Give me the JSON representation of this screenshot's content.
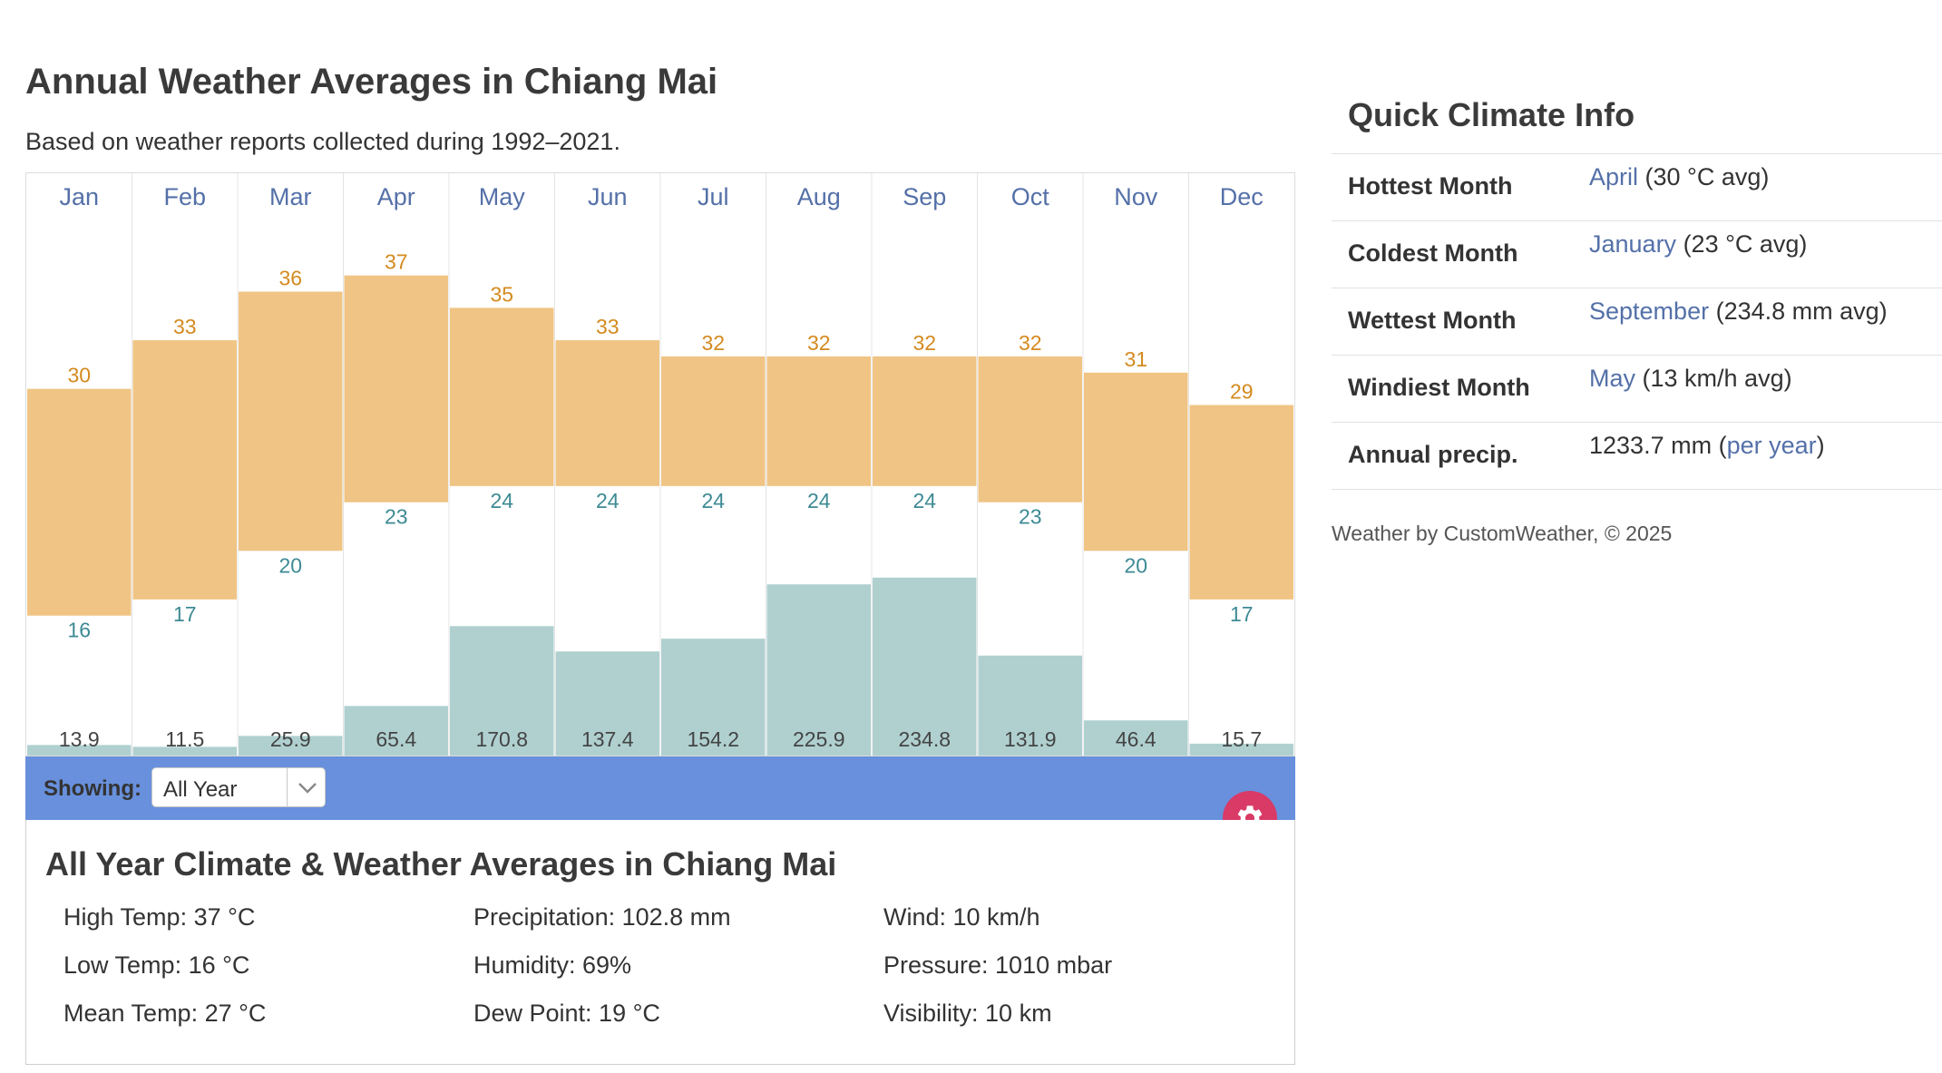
{
  "header": {
    "title": "Annual Weather Averages in Chiang Mai",
    "subtitle": "Based on weather reports collected during 1992–2021."
  },
  "chart_data": {
    "type": "bar",
    "categories": [
      "Jan",
      "Feb",
      "Mar",
      "Apr",
      "May",
      "Jun",
      "Jul",
      "Aug",
      "Sep",
      "Oct",
      "Nov",
      "Dec"
    ],
    "series": [
      {
        "name": "",
        "kind": "temperature_range",
        "high": [
          30,
          33,
          36,
          37,
          35,
          33,
          32,
          32,
          32,
          32,
          31,
          29
        ],
        "low": [
          16,
          17,
          20,
          23,
          24,
          24,
          24,
          24,
          24,
          23,
          20,
          17
        ]
      },
      {
        "name": "",
        "kind": "precipitation",
        "values": [
          13.9,
          11.5,
          25.9,
          65.4,
          170.8,
          137.4,
          154.2,
          225.9,
          234.8,
          131.9,
          46.4,
          15.7
        ]
      }
    ],
    "colors": {
      "temperature": "#f0c484",
      "precipitation": "#b0d0d0",
      "high_label": "#d48a1f",
      "low_label": "#3d8a94",
      "month_label": "#5470a8"
    },
    "grid": "vertical",
    "legend": "none"
  },
  "controls": {
    "showing_label": "Showing:",
    "period_selected": "All Year",
    "settings_icon": "gear-icon"
  },
  "summary": {
    "title": "All Year Climate & Weather Averages in Chiang Mai",
    "high_temp": "High Temp: 37 °C",
    "low_temp": "Low Temp: 16 °C",
    "mean_temp": "Mean Temp: 27 °C",
    "precipitation": "Precipitation: 102.8 mm",
    "humidity": "Humidity: 69%",
    "dew_point": "Dew Point: 19 °C",
    "wind": "Wind: 10 km/h",
    "pressure": "Pressure: 1010 mbar",
    "visibility": "Visibility: 10 km"
  },
  "quick_info": {
    "title": "Quick Climate Info",
    "rows": [
      {
        "label": "Hottest Month",
        "link": "April",
        "value": " (30 °C avg)"
      },
      {
        "label": "Coldest Month",
        "link": "January",
        "value": " (23 °C avg)"
      },
      {
        "label": "Wettest Month",
        "link": "September",
        "value": " (234.8 mm avg)"
      },
      {
        "label": "Windiest Month",
        "link": "May",
        "value": " (13 km/h avg)"
      }
    ],
    "annual": {
      "label": "Annual precip.",
      "value": "1233.7 mm (",
      "link": "per year",
      "suffix": ")"
    }
  },
  "footer": {
    "credit": "Weather by CustomWeather, © 2025"
  },
  "colors": {
    "bar_blue": "#6890dc",
    "settings_pink": "#d93a66",
    "link": "#5470a8"
  }
}
